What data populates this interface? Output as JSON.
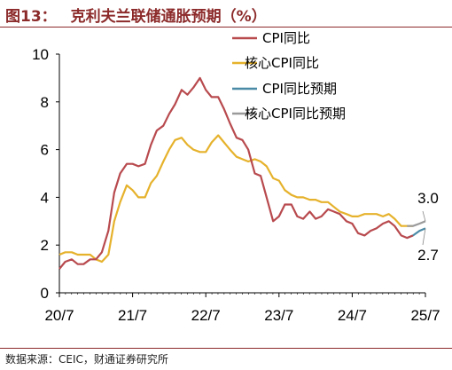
{
  "header": {
    "figure_no": "图13：",
    "title": "克利夫兰联储通胀预期（%）"
  },
  "footer": {
    "source": "数据来源：CEIC，财通证券研究所"
  },
  "chart_data": {
    "type": "line",
    "title": "克利夫兰联储通胀预期（%）",
    "xlabel": "",
    "ylabel": "",
    "ylim": [
      0,
      10
    ],
    "yticks": [
      0,
      2,
      4,
      6,
      8,
      10
    ],
    "xlim": [
      2020.5,
      2025.5
    ],
    "xticks": [
      {
        "t": 2020.5,
        "label": "20/7"
      },
      {
        "t": 2021.5,
        "label": "21/7"
      },
      {
        "t": 2022.5,
        "label": "22/7"
      },
      {
        "t": 2023.5,
        "label": "23/7"
      },
      {
        "t": 2024.5,
        "label": "24/7"
      },
      {
        "t": 2025.5,
        "label": "25/7"
      }
    ],
    "grid": false,
    "legend_position": "top-right",
    "annotations": [
      {
        "text": "3.0",
        "t": 2025.5,
        "y": 3.0
      },
      {
        "text": "2.7",
        "t": 2025.5,
        "y": 2.7
      }
    ],
    "series": [
      {
        "name": "CPI同比",
        "color": "#b84a4e",
        "x": [
          2020.5,
          2020.58,
          2020.67,
          2020.75,
          2020.83,
          2020.92,
          2021.0,
          2021.08,
          2021.17,
          2021.25,
          2021.33,
          2021.42,
          2021.5,
          2021.58,
          2021.67,
          2021.75,
          2021.83,
          2021.92,
          2022.0,
          2022.08,
          2022.17,
          2022.25,
          2022.33,
          2022.42,
          2022.5,
          2022.58,
          2022.67,
          2022.75,
          2022.83,
          2022.92,
          2023.0,
          2023.08,
          2023.17,
          2023.25,
          2023.33,
          2023.42,
          2023.5,
          2023.58,
          2023.67,
          2023.75,
          2023.83,
          2023.92,
          2024.0,
          2024.08,
          2024.17,
          2024.25,
          2024.33,
          2024.42,
          2024.5,
          2024.58,
          2024.67,
          2024.75,
          2024.83,
          2024.92,
          2025.0,
          2025.08,
          2025.17,
          2025.25,
          2025.33
        ],
        "y": [
          1.0,
          1.3,
          1.4,
          1.2,
          1.2,
          1.4,
          1.4,
          1.7,
          2.6,
          4.2,
          5.0,
          5.4,
          5.4,
          5.3,
          5.4,
          6.2,
          6.8,
          7.0,
          7.5,
          7.9,
          8.5,
          8.3,
          8.6,
          9.0,
          8.5,
          8.2,
          8.2,
          7.7,
          7.1,
          6.5,
          6.4,
          6.0,
          5.0,
          4.9,
          4.0,
          3.0,
          3.2,
          3.7,
          3.7,
          3.2,
          3.1,
          3.4,
          3.1,
          3.2,
          3.5,
          3.4,
          3.3,
          3.0,
          2.9,
          2.5,
          2.4,
          2.6,
          2.7,
          2.9,
          3.0,
          2.8,
          2.4,
          2.3,
          2.4
        ]
      },
      {
        "name": "核心CPI同比",
        "color": "#e6b22c",
        "x": [
          2020.5,
          2020.58,
          2020.67,
          2020.75,
          2020.83,
          2020.92,
          2021.0,
          2021.08,
          2021.17,
          2021.25,
          2021.33,
          2021.42,
          2021.5,
          2021.58,
          2021.67,
          2021.75,
          2021.83,
          2021.92,
          2022.0,
          2022.08,
          2022.17,
          2022.25,
          2022.33,
          2022.42,
          2022.5,
          2022.58,
          2022.67,
          2022.75,
          2022.83,
          2022.92,
          2023.0,
          2023.08,
          2023.17,
          2023.25,
          2023.33,
          2023.42,
          2023.5,
          2023.58,
          2023.67,
          2023.75,
          2023.83,
          2023.92,
          2024.0,
          2024.08,
          2024.17,
          2024.25,
          2024.33,
          2024.42,
          2024.5,
          2024.58,
          2024.67,
          2024.75,
          2024.83,
          2024.92,
          2025.0,
          2025.08,
          2025.17,
          2025.25,
          2025.33
        ],
        "y": [
          1.6,
          1.7,
          1.7,
          1.6,
          1.6,
          1.6,
          1.4,
          1.3,
          1.6,
          3.0,
          3.8,
          4.5,
          4.3,
          4.0,
          4.0,
          4.6,
          4.9,
          5.5,
          6.0,
          6.4,
          6.5,
          6.2,
          6.0,
          5.9,
          5.9,
          6.3,
          6.6,
          6.3,
          6.0,
          5.7,
          5.6,
          5.5,
          5.6,
          5.5,
          5.3,
          4.8,
          4.7,
          4.3,
          4.1,
          4.0,
          4.0,
          3.9,
          3.9,
          3.8,
          3.8,
          3.6,
          3.4,
          3.3,
          3.2,
          3.2,
          3.3,
          3.3,
          3.3,
          3.2,
          3.3,
          3.1,
          2.8,
          2.8,
          2.8
        ]
      },
      {
        "name": "CPI同比预期",
        "color": "#4a8aa6",
        "x": [
          2025.25,
          2025.33,
          2025.42,
          2025.5
        ],
        "y": [
          2.3,
          2.4,
          2.6,
          2.7
        ]
      },
      {
        "name": "核心CPI同比预期",
        "color": "#9a9a9a",
        "x": [
          2025.25,
          2025.33,
          2025.42,
          2025.5
        ],
        "y": [
          2.8,
          2.8,
          2.9,
          3.0
        ]
      }
    ]
  }
}
